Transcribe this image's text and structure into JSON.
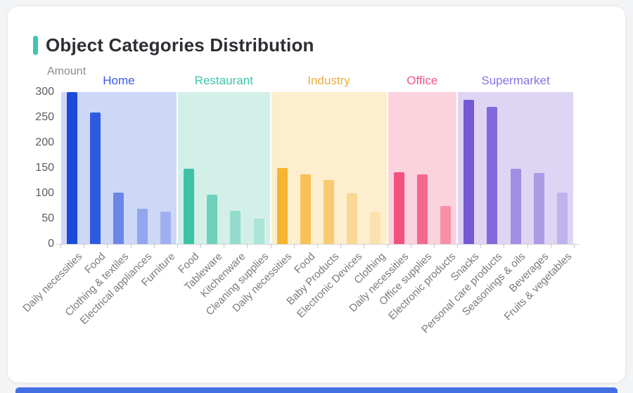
{
  "page": {
    "background_color": "#f3f4f6",
    "accent_color": "#3ec6b4",
    "bottom_edge_color": "#4570e4"
  },
  "title": "Object Categories Distribution",
  "chart_data": {
    "type": "bar",
    "title": "Object Categories Distribution",
    "xlabel": "",
    "ylabel": "Amount",
    "ylim": [
      0,
      300
    ],
    "yticks": [
      0,
      50,
      100,
      150,
      200,
      250,
      300
    ],
    "grid": false,
    "legend_position": "none",
    "group_labels_position": "top",
    "groups": [
      {
        "name": "Home",
        "label_color": "#3b58e8",
        "band_color": "#cdd7f6",
        "bars": [
          {
            "label": "Daily necessities",
            "value": 300,
            "color": "#1c49d8"
          },
          {
            "label": "Food",
            "value": 260,
            "color": "#2e5ae0"
          },
          {
            "label": "Clothing & textiles",
            "value": 102,
            "color": "#6c86e8"
          },
          {
            "label": "Electrical appliances",
            "value": 70,
            "color": "#92a5ee"
          },
          {
            "label": "Furniture",
            "value": 64,
            "color": "#9fb0f0"
          }
        ]
      },
      {
        "name": "Restaurant",
        "label_color": "#3cc3a6",
        "band_color": "#d2f0e8",
        "bars": [
          {
            "label": "Food",
            "value": 148,
            "color": "#3cc3a6"
          },
          {
            "label": "Tableware",
            "value": 97,
            "color": "#6fd0bb"
          },
          {
            "label": "Kitchenware",
            "value": 65,
            "color": "#93dccc"
          },
          {
            "label": "Cleaning supplies",
            "value": 50,
            "color": "#abe4d8"
          }
        ]
      },
      {
        "name": "Industry",
        "label_color": "#efac3c",
        "band_color": "#fdefcd",
        "bars": [
          {
            "label": "Daily necessities",
            "value": 150,
            "color": "#f6b431"
          },
          {
            "label": "Food",
            "value": 138,
            "color": "#f8c155"
          },
          {
            "label": "Baby Products",
            "value": 126,
            "color": "#f9ca72"
          },
          {
            "label": "Electronic Devices",
            "value": 100,
            "color": "#fbd795"
          },
          {
            "label": "Clothing",
            "value": 64,
            "color": "#fce1b0"
          }
        ]
      },
      {
        "name": "Office",
        "label_color": "#f4538a",
        "band_color": "#fbd3de",
        "bars": [
          {
            "label": "Daily necessities",
            "value": 142,
            "color": "#f4517e"
          },
          {
            "label": "Office supplies",
            "value": 138,
            "color": "#f5688e"
          },
          {
            "label": "Electronic products",
            "value": 75,
            "color": "#f78fa9"
          }
        ]
      },
      {
        "name": "Supermarket",
        "label_color": "#8a70ea",
        "band_color": "#ded5f4",
        "bars": [
          {
            "label": "Snacks",
            "value": 285,
            "color": "#7458d6"
          },
          {
            "label": "Personal care products",
            "value": 271,
            "color": "#8268da"
          },
          {
            "label": "Seasonings & oils",
            "value": 148,
            "color": "#a18ee4"
          },
          {
            "label": "Beverages",
            "value": 140,
            "color": "#ac9be7"
          },
          {
            "label": "Fruits & vegetables",
            "value": 102,
            "color": "#c0b2ec"
          }
        ]
      }
    ]
  }
}
